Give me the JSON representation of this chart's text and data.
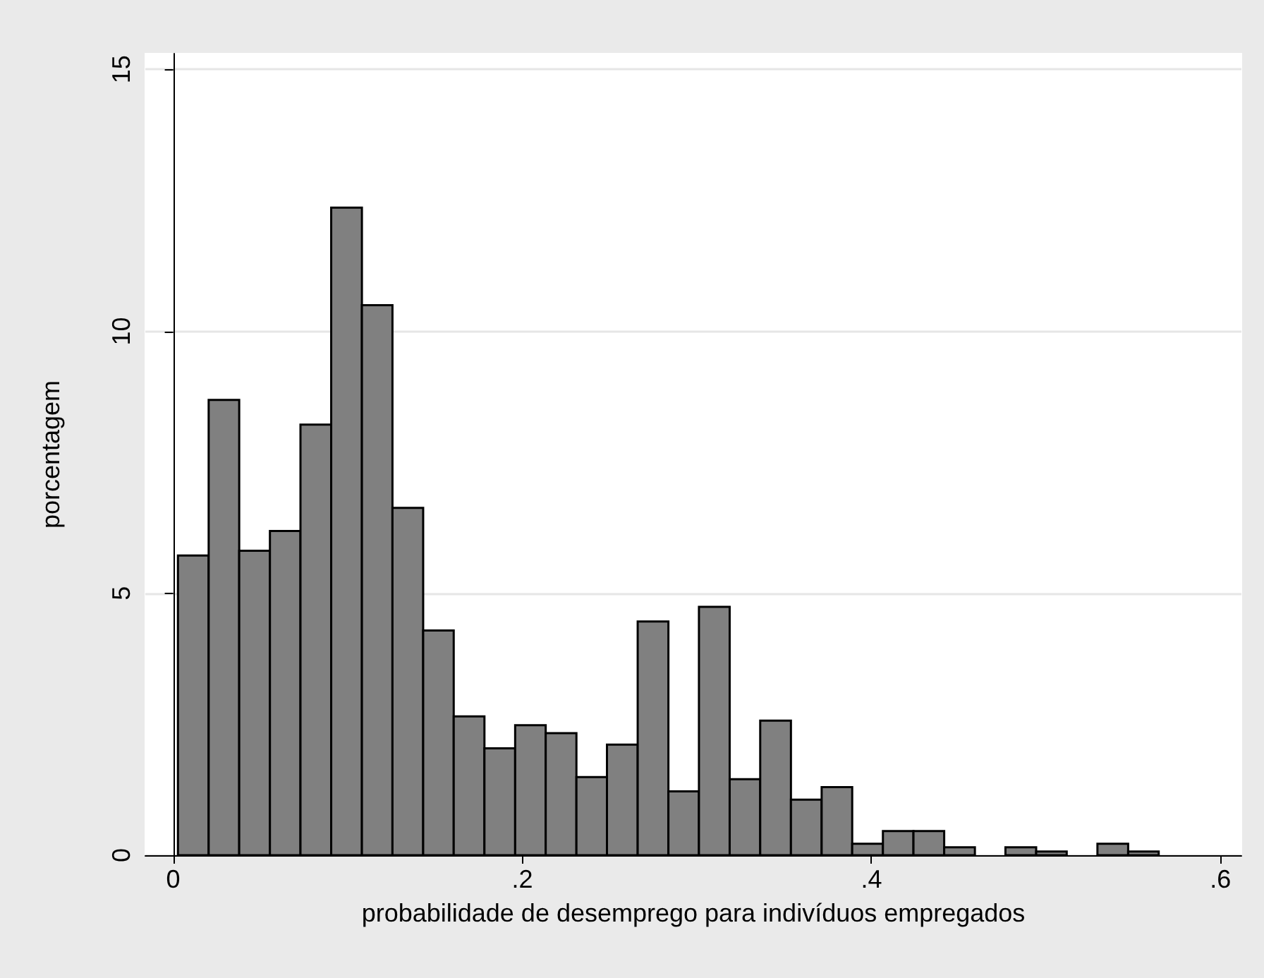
{
  "chart_data": {
    "type": "histogram",
    "xlabel": "probabilidade de desemprego para indivíduos empregados",
    "ylabel": "porcentagem",
    "bins": [
      0.0027,
      0.0203,
      0.0378,
      0.0554,
      0.0729,
      0.0905,
      0.1081,
      0.1256,
      0.1432,
      0.1607,
      0.1783,
      0.1959,
      0.2134,
      0.231,
      0.2485,
      0.2661,
      0.2837,
      0.3012,
      0.3188,
      0.3363,
      0.3539,
      0.3715,
      0.389,
      0.4066,
      0.4241,
      0.4417,
      0.4593,
      0.4768,
      0.4944,
      0.5119,
      0.5295,
      0.5471,
      0.5646
    ],
    "values": [
      5.72,
      8.69,
      5.81,
      6.19,
      8.22,
      12.36,
      10.5,
      6.63,
      4.29,
      2.65,
      2.04,
      2.48,
      2.33,
      1.49,
      2.11,
      4.46,
      1.22,
      4.74,
      1.45,
      2.57,
      1.06,
      1.3,
      0.22,
      0.46,
      0.46,
      0.15,
      0,
      0.15,
      0.07,
      0,
      0.22,
      0.07
    ],
    "color": "#808080",
    "xlim": [
      -0.016,
      0.612
    ],
    "ylim": [
      0,
      15.3
    ],
    "xticks": [
      {
        "value": 0,
        "label": "0"
      },
      {
        "value": 0.2,
        "label": ".2"
      },
      {
        "value": 0.4,
        "label": ".4"
      },
      {
        "value": 0.6,
        "label": ".6"
      }
    ],
    "yticks": [
      0,
      5,
      10,
      15
    ],
    "grid": "y"
  }
}
